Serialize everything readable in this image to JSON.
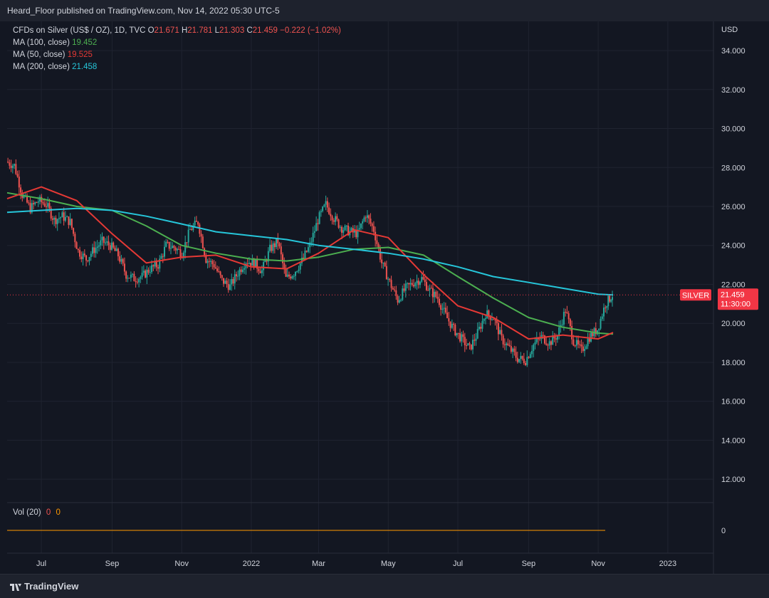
{
  "header": {
    "published": "Heard_Floor published on TradingView.com, Nov 14, 2022 05:30 UTC-5"
  },
  "legend": {
    "symbol": "CFDs on Silver (US$ / OZ), 1D, TVC",
    "ohlc": [
      {
        "label": "O",
        "value": "21.671"
      },
      {
        "label": "H",
        "value": "21.781"
      },
      {
        "label": "L",
        "value": "21.303"
      },
      {
        "label": "C",
        "value": "21.459"
      }
    ],
    "change": "−0.222 (−1.02%)",
    "mas": [
      {
        "label": "MA (100, close)",
        "value": "19.452",
        "color": "#4caf50"
      },
      {
        "label": "MA (50, close)",
        "value": "19.525",
        "color": "#e53935"
      },
      {
        "label": "MA (200, close)",
        "value": "21.458",
        "color": "#26c6da"
      }
    ]
  },
  "volume": {
    "label": "Vol (20)",
    "values": [
      "0",
      "0"
    ],
    "axis_value": "0"
  },
  "price_tag": {
    "symbol": "SILVER",
    "price": "21.459",
    "countdown": "11:30:00",
    "color": "#f23645"
  },
  "footer": {
    "brand": "TradingView"
  },
  "colors": {
    "up": "#26a69a",
    "down": "#ef5350",
    "background": "#131722",
    "grid": "#2a2e39",
    "volume_line": "#ff9800"
  },
  "chart_data": {
    "type": "line",
    "currency": "USD",
    "y_ticks": [
      "34.000",
      "32.000",
      "30.000",
      "28.000",
      "26.000",
      "24.000",
      "22.000",
      "20.000",
      "18.000",
      "16.000",
      "14.000",
      "12.000"
    ],
    "x_ticks": [
      "Jul",
      "Sep",
      "Nov",
      "2022",
      "Mar",
      "May",
      "Jul",
      "Sep",
      "Nov",
      "2023"
    ],
    "ylim": [
      10.8,
      35.5
    ],
    "last_price": 21.459,
    "price": {
      "x": [
        "2021-06-01",
        "2021-06-08",
        "2021-06-15",
        "2021-06-22",
        "2021-06-29",
        "2021-07-06",
        "2021-07-13",
        "2021-07-20",
        "2021-07-27",
        "2021-08-03",
        "2021-08-10",
        "2021-08-17",
        "2021-08-24",
        "2021-08-31",
        "2021-09-07",
        "2021-09-14",
        "2021-09-21",
        "2021-09-28",
        "2021-10-05",
        "2021-10-12",
        "2021-10-19",
        "2021-10-26",
        "2021-11-02",
        "2021-11-09",
        "2021-11-16",
        "2021-11-23",
        "2021-11-30",
        "2021-12-07",
        "2021-12-14",
        "2021-12-21",
        "2021-12-28",
        "2022-01-04",
        "2022-01-11",
        "2022-01-18",
        "2022-01-25",
        "2022-02-01",
        "2022-02-08",
        "2022-02-15",
        "2022-02-22",
        "2022-03-01",
        "2022-03-08",
        "2022-03-15",
        "2022-03-22",
        "2022-03-29",
        "2022-04-05",
        "2022-04-12",
        "2022-04-19",
        "2022-04-26",
        "2022-05-03",
        "2022-05-10",
        "2022-05-17",
        "2022-05-24",
        "2022-05-31",
        "2022-06-07",
        "2022-06-14",
        "2022-06-21",
        "2022-06-28",
        "2022-07-05",
        "2022-07-12",
        "2022-07-19",
        "2022-07-26",
        "2022-08-02",
        "2022-08-09",
        "2022-08-16",
        "2022-08-23",
        "2022-08-30",
        "2022-09-06",
        "2022-09-13",
        "2022-09-20",
        "2022-09-27",
        "2022-10-04",
        "2022-10-11",
        "2022-10-18",
        "2022-10-25",
        "2022-11-01",
        "2022-11-08",
        "2022-11-14"
      ],
      "close": [
        28.3,
        28.1,
        26.6,
        25.9,
        26.3,
        26.1,
        25.3,
        25.5,
        25.2,
        23.7,
        23.3,
        23.8,
        24.2,
        24.0,
        23.5,
        22.5,
        22.3,
        22.4,
        22.8,
        23.0,
        24.0,
        23.9,
        23.6,
        24.8,
        25.2,
        23.3,
        23.0,
        22.2,
        21.9,
        22.6,
        23.2,
        23.1,
        22.7,
        23.8,
        24.2,
        22.3,
        22.6,
        23.2,
        24.0,
        25.3,
        26.1,
        25.4,
        24.9,
        24.7,
        24.6,
        25.6,
        24.8,
        23.1,
        22.1,
        21.2,
        21.8,
        22.1,
        22.3,
        21.7,
        21.3,
        20.4,
        19.7,
        19.2,
        18.7,
        19.5,
        20.5,
        20.3,
        19.2,
        18.7,
        18.2,
        18.1,
        18.9,
        19.3,
        19.0,
        19.4,
        20.7,
        19.1,
        18.6,
        19.3,
        19.7,
        21.0,
        21.46
      ]
    },
    "series": [
      {
        "name": "MA (100, close)",
        "color": "#4caf50",
        "x": [
          "2021-06-01",
          "2021-07-01",
          "2021-08-01",
          "2021-09-01",
          "2021-10-01",
          "2021-11-01",
          "2021-12-01",
          "2022-01-01",
          "2022-02-01",
          "2022-03-01",
          "2022-04-01",
          "2022-05-01",
          "2022-06-01",
          "2022-07-01",
          "2022-08-01",
          "2022-09-01",
          "2022-10-01",
          "2022-11-01",
          "2022-11-14"
        ],
        "values": [
          26.7,
          26.4,
          26.0,
          25.8,
          25.0,
          24.0,
          23.6,
          23.3,
          23.2,
          23.4,
          23.8,
          23.9,
          23.5,
          22.4,
          21.3,
          20.3,
          19.8,
          19.5,
          19.45
        ]
      },
      {
        "name": "MA (50, close)",
        "color": "#e53935",
        "x": [
          "2021-06-01",
          "2021-07-01",
          "2021-08-01",
          "2021-09-01",
          "2021-10-01",
          "2021-11-01",
          "2021-12-01",
          "2022-01-01",
          "2022-02-01",
          "2022-03-01",
          "2022-04-01",
          "2022-05-01",
          "2022-06-01",
          "2022-07-01",
          "2022-08-01",
          "2022-09-01",
          "2022-10-01",
          "2022-11-01",
          "2022-11-14"
        ],
        "values": [
          26.4,
          27.0,
          26.3,
          24.6,
          23.1,
          23.4,
          23.5,
          22.9,
          22.8,
          23.6,
          24.8,
          24.4,
          22.5,
          20.9,
          20.3,
          19.2,
          19.4,
          19.2,
          19.53
        ]
      },
      {
        "name": "MA (200, close)",
        "color": "#26c6da",
        "x": [
          "2021-06-01",
          "2021-07-01",
          "2021-08-01",
          "2021-09-01",
          "2021-10-01",
          "2021-11-01",
          "2021-12-01",
          "2022-01-01",
          "2022-02-01",
          "2022-03-01",
          "2022-04-01",
          "2022-05-01",
          "2022-06-01",
          "2022-07-01",
          "2022-08-01",
          "2022-09-01",
          "2022-10-01",
          "2022-11-01",
          "2022-11-14"
        ],
        "values": [
          25.7,
          25.8,
          25.9,
          25.8,
          25.5,
          25.1,
          24.7,
          24.5,
          24.3,
          24.0,
          23.8,
          23.6,
          23.3,
          22.9,
          22.4,
          22.1,
          21.8,
          21.5,
          21.46
        ]
      }
    ]
  }
}
